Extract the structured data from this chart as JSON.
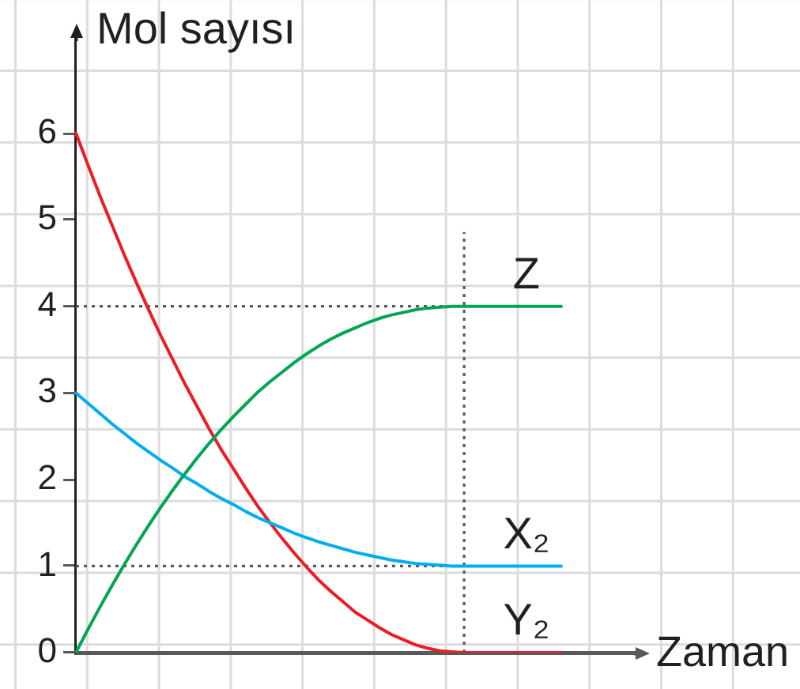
{
  "chart_data": {
    "type": "line",
    "xlabel": "Zaman",
    "ylabel": "Mol sayısı",
    "categories": [
      null,
      null,
      null,
      null,
      null,
      null,
      null,
      null,
      null,
      null,
      null,
      null,
      null,
      null,
      null,
      null,
      null,
      null,
      null,
      null,
      null,
      null,
      null,
      null,
      null,
      null,
      null,
      null,
      null,
      null,
      null,
      null,
      null,
      null,
      null,
      null,
      null,
      null,
      null,
      null,
      null,
      null,
      null,
      null,
      null,
      null,
      null
    ],
    "series": [
      {
        "name": "Z",
        "color": "#00a651",
        "values": [
          0,
          0.27,
          0.53,
          0.78,
          1.02,
          1.25,
          1.47,
          1.68,
          1.88,
          2.07,
          2.25,
          2.42,
          2.58,
          2.73,
          2.87,
          3.01,
          3.13,
          3.24,
          3.35,
          3.45,
          3.54,
          3.62,
          3.69,
          3.75,
          3.81,
          3.86,
          3.9,
          3.93,
          3.96,
          3.98,
          3.99,
          4,
          4,
          4,
          4,
          4,
          4,
          4,
          4,
          4,
          4,
          null,
          null,
          null,
          null,
          null,
          null
        ]
      },
      {
        "name": "X₂",
        "color": "#00aeef",
        "values": [
          3,
          2.88,
          2.76,
          2.64,
          2.53,
          2.42,
          2.32,
          2.22,
          2.13,
          2.03,
          1.95,
          1.86,
          1.78,
          1.71,
          1.63,
          1.56,
          1.5,
          1.44,
          1.38,
          1.33,
          1.28,
          1.24,
          1.2,
          1.16,
          1.13,
          1.1,
          1.07,
          1.05,
          1.03,
          1.02,
          1.01,
          1,
          1,
          1,
          1,
          1,
          1,
          1,
          1,
          1,
          1,
          null,
          null,
          null,
          null,
          null,
          null
        ]
      },
      {
        "name": "Y₂",
        "color": "#ed1c24",
        "values": [
          6,
          5.63,
          5.27,
          4.93,
          4.59,
          4.27,
          3.96,
          3.66,
          3.38,
          3.1,
          2.84,
          2.58,
          2.34,
          2.12,
          1.9,
          1.69,
          1.5,
          1.32,
          1.15,
          0.99,
          0.84,
          0.71,
          0.59,
          0.47,
          0.38,
          0.29,
          0.21,
          0.15,
          0.09,
          0.05,
          0.02,
          0.01,
          0,
          0,
          0,
          0,
          0,
          0,
          0,
          0,
          0,
          null,
          null,
          null,
          null,
          null,
          null
        ]
      },
      {
        "color": "#58595b",
        "line_style": "dotted",
        "values": [
          4,
          4,
          4,
          4,
          4,
          4,
          4,
          4,
          4,
          4,
          4,
          4,
          4,
          4,
          4,
          4,
          4,
          4,
          4,
          4,
          4,
          4,
          4,
          4,
          4,
          4,
          4,
          4,
          4,
          4,
          4,
          4,
          4,
          null,
          null,
          null,
          null,
          null,
          null,
          null,
          null,
          null,
          null,
          null,
          null,
          null,
          null
        ]
      },
      {
        "color": "#58595b",
        "line_style": "dotted",
        "values": [
          1,
          1,
          1,
          1,
          1,
          1,
          1,
          1,
          1,
          1,
          1,
          1,
          1,
          1,
          1,
          1,
          1,
          1,
          1,
          1,
          1,
          1,
          1,
          1,
          1,
          1,
          1,
          1,
          1,
          1,
          1,
          1,
          1,
          null,
          null,
          null,
          null,
          null,
          null,
          null,
          null,
          null,
          null,
          null,
          null,
          null,
          null
        ]
      }
    ],
    "ylim": [
      0,
      7.1
    ],
    "yticks": [
      0,
      1,
      2,
      3,
      4,
      5,
      6
    ],
    "tick_labels": "y"
  }
}
